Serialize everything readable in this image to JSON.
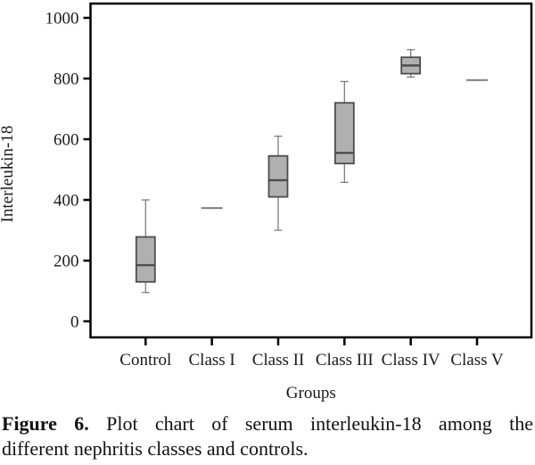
{
  "figure": {
    "caption": {
      "label": "Figure 6.",
      "line1_rest": "Plot chart of serum interleukin-18 among the",
      "line2": "different nephritis classes and controls."
    }
  },
  "chart_data": {
    "type": "boxplot",
    "title": "",
    "xlabel": "Groups",
    "ylabel": "Interleukin-18",
    "yticks": [
      0,
      200,
      400,
      600,
      800,
      1000
    ],
    "ylim": [
      -55,
      1047
    ],
    "grid": false,
    "legend": "none",
    "categories": [
      "Control",
      "Class I",
      "Class II",
      "Class III",
      "Class IV",
      "Class V"
    ],
    "boxes": [
      {
        "category": "Control",
        "min": 95,
        "q1": 130,
        "median": 185,
        "q3": 278,
        "max": 400
      },
      {
        "category": "Class I",
        "value": 373
      },
      {
        "category": "Class II",
        "min": 300,
        "q1": 410,
        "median": 465,
        "q3": 545,
        "max": 610
      },
      {
        "category": "Class III",
        "min": 458,
        "q1": 520,
        "median": 555,
        "q3": 720,
        "max": 790
      },
      {
        "category": "Class IV",
        "min": 805,
        "q1": 816,
        "median": 843,
        "q3": 870,
        "max": 895
      },
      {
        "category": "Class V",
        "value": 795
      }
    ],
    "colors": {
      "box_fill": "#b0b0b0",
      "box_border": "#4d4d4d",
      "median": "#4d4d4d",
      "whisker": "#7d7d7d",
      "single_line": "#7d7d7d",
      "axis": "#000000",
      "text": "#1a1a1a"
    }
  }
}
